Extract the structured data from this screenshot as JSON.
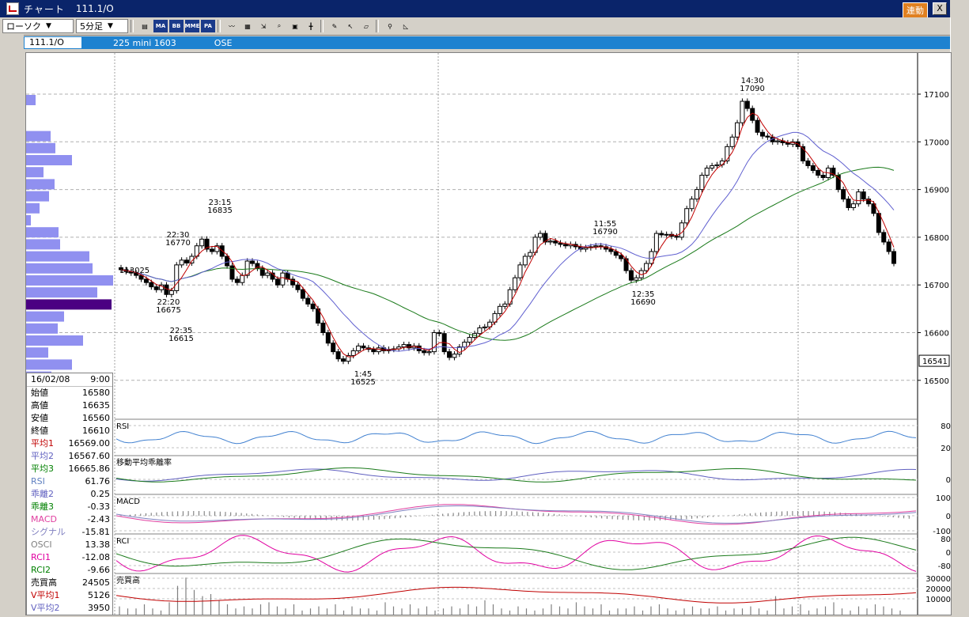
{
  "window": {
    "title": "チャート",
    "symbol": "111.1/O",
    "link_label": "連動",
    "close_label": "X"
  },
  "toolbar": {
    "chart_type": "ローソク",
    "interval": "5分足",
    "buttons": [
      "MA",
      "BB",
      "MME",
      "PA"
    ]
  },
  "infobar": {
    "symbol": "111.1/O",
    "contract": "225 mini 1603",
    "exchange": "OSE"
  },
  "price_axis": {
    "ticks": [
      "17100",
      "17000",
      "16900",
      "16800",
      "16700",
      "16600",
      "16500"
    ],
    "current": "16541"
  },
  "annotations": [
    {
      "time": "14:30",
      "price": "17090"
    },
    {
      "time": "23:15",
      "price": "16835"
    },
    {
      "time": "22:30",
      "price": "16770"
    },
    {
      "time": "11:55",
      "price": "16790"
    },
    {
      "time": "22:20",
      "price": "16675"
    },
    {
      "time": "22:35",
      "price": "16615"
    },
    {
      "time": "12:35",
      "price": "16690"
    },
    {
      "time": "1:45",
      "price": "16525"
    },
    {
      "time": "",
      "price": "113025"
    }
  ],
  "panels": {
    "rsi": {
      "label": "RSI",
      "ticks": [
        "80",
        "20"
      ]
    },
    "kairi": {
      "label": "移動平均乖離率",
      "ticks": [
        "0"
      ]
    },
    "macd": {
      "label": "MACD",
      "ticks": [
        "100",
        "0",
        "-100"
      ]
    },
    "rci": {
      "label": "RCI",
      "ticks": [
        "80",
        "0",
        "-80"
      ]
    },
    "volume": {
      "label": "売買高",
      "ticks": [
        "30000",
        "20000",
        "10000"
      ]
    }
  },
  "info": {
    "date": "16/02/08",
    "time": "9:00",
    "rows": [
      {
        "k": "始値",
        "v": "16580",
        "c": "#000000"
      },
      {
        "k": "高値",
        "v": "16635",
        "c": "#000000"
      },
      {
        "k": "安値",
        "v": "16560",
        "c": "#000000"
      },
      {
        "k": "終値",
        "v": "16610",
        "c": "#000000"
      },
      {
        "k": "平均1",
        "v": "16569.00",
        "c": "#c00000"
      },
      {
        "k": "平均2",
        "v": "16567.60",
        "c": "#6060c0"
      },
      {
        "k": "平均3",
        "v": "16665.86",
        "c": "#008000"
      },
      {
        "k": "RSI",
        "v": "61.76",
        "c": "#6080c0"
      },
      {
        "k": "乖離2",
        "v": "0.25",
        "c": "#6060c0"
      },
      {
        "k": "乖離3",
        "v": "-0.33",
        "c": "#008000"
      },
      {
        "k": "MACD",
        "v": "-2.43",
        "c": "#e040a0"
      },
      {
        "k": "シグナル",
        "v": "-15.81",
        "c": "#8080c0"
      },
      {
        "k": "OSCI",
        "v": "13.38",
        "c": "#808080"
      },
      {
        "k": "RCI1",
        "v": "-12.08",
        "c": "#e000a0"
      },
      {
        "k": "RCI2",
        "v": "-9.66",
        "c": "#008000"
      },
      {
        "k": "売買高",
        "v": "24505",
        "c": "#000000"
      },
      {
        "k": "V平均1",
        "v": "5126",
        "c": "#c00000"
      },
      {
        "k": "V平均2",
        "v": "3950",
        "c": "#6060c0"
      }
    ]
  }
}
